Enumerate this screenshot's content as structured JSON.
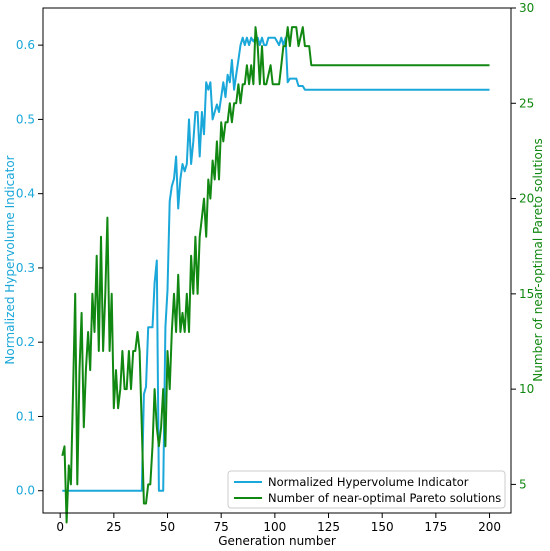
{
  "chart_data": {
    "type": "line",
    "xlabel": "Generation number",
    "ylabel_left": "Normalized Hypervolume Indicator",
    "ylabel_right": "Number of near-optimal Pareto solutions",
    "xlim": [
      -8,
      210
    ],
    "ylim_left": [
      -0.03,
      0.65
    ],
    "ylim_right": [
      3.5,
      30
    ],
    "x_ticks": [
      0,
      25,
      50,
      75,
      100,
      125,
      150,
      175,
      200
    ],
    "x_tick_labels": [
      "0",
      "25",
      "50",
      "75",
      "100",
      "125",
      "150",
      "175",
      "200"
    ],
    "y_left_ticks": [
      0.0,
      0.1,
      0.2,
      0.3,
      0.4,
      0.5,
      0.6
    ],
    "y_left_tick_labels": [
      "0.0",
      "0.1",
      "0.2",
      "0.3",
      "0.4",
      "0.5",
      "0.6"
    ],
    "y_right_ticks": [
      5,
      10,
      15,
      20,
      25,
      30
    ],
    "y_right_tick_labels": [
      "5",
      "10",
      "15",
      "20",
      "25",
      "30"
    ],
    "left_axis_color": "#1aa7d9",
    "right_axis_color": "#118811",
    "legend_position": "lower-right",
    "grid": false,
    "series": [
      {
        "name": "Normalized Hypervolume Indicator",
        "axis": "left",
        "color": "#1aa7d9",
        "points": [
          [
            1,
            0
          ],
          [
            38,
            0
          ],
          [
            39,
            0.13
          ],
          [
            40,
            0.14
          ],
          [
            41,
            0.22
          ],
          [
            43,
            0.22
          ],
          [
            44,
            0.28
          ],
          [
            45,
            0.31
          ],
          [
            46,
            0
          ],
          [
            48,
            0
          ],
          [
            49,
            0.22
          ],
          [
            50,
            0.27
          ],
          [
            51,
            0.39
          ],
          [
            52,
            0.41
          ],
          [
            53,
            0.42
          ],
          [
            54,
            0.45
          ],
          [
            55,
            0.38
          ],
          [
            56,
            0.42
          ],
          [
            57,
            0.44
          ],
          [
            58,
            0.43
          ],
          [
            59,
            0.44
          ],
          [
            60,
            0.5
          ],
          [
            61,
            0.44
          ],
          [
            62,
            0.47
          ],
          [
            63,
            0.51
          ],
          [
            64,
            0.51
          ],
          [
            65,
            0.45
          ],
          [
            66,
            0.51
          ],
          [
            67,
            0.48
          ],
          [
            68,
            0.55
          ],
          [
            69,
            0.54
          ],
          [
            70,
            0.55
          ],
          [
            71,
            0.5
          ],
          [
            72,
            0.51
          ],
          [
            73,
            0.52
          ],
          [
            74,
            0.51
          ],
          [
            75,
            0.53
          ],
          [
            76,
            0.55
          ],
          [
            77,
            0.53
          ],
          [
            78,
            0.56
          ],
          [
            79,
            0.55
          ],
          [
            80,
            0.58
          ],
          [
            81,
            0.54
          ],
          [
            82,
            0.56
          ],
          [
            83,
            0.58
          ],
          [
            84,
            0.6
          ],
          [
            85,
            0.61
          ],
          [
            86,
            0.6
          ],
          [
            87,
            0.61
          ],
          [
            88,
            0.6
          ],
          [
            89,
            0.61
          ],
          [
            90,
            0.605
          ],
          [
            91,
            0.61
          ],
          [
            92,
            0.61
          ],
          [
            93,
            0.6
          ],
          [
            94,
            0.61
          ],
          [
            95,
            0.6
          ],
          [
            96,
            0.6
          ],
          [
            97,
            0.61
          ],
          [
            98,
            0.61
          ],
          [
            100,
            0.61
          ],
          [
            101,
            0.605
          ],
          [
            102,
            0.6
          ],
          [
            103,
            0.61
          ],
          [
            104,
            0.6
          ],
          [
            105,
            0.61
          ],
          [
            106,
            0.55
          ],
          [
            107,
            0.555
          ],
          [
            110,
            0.555
          ],
          [
            111,
            0.545
          ],
          [
            113,
            0.545
          ],
          [
            114,
            0.54
          ],
          [
            120,
            0.54
          ],
          [
            200,
            0.54
          ]
        ]
      },
      {
        "name": "Number of near-optimal Pareto solutions",
        "axis": "right",
        "color": "#118811",
        "points": [
          [
            1,
            6.5
          ],
          [
            2,
            7
          ],
          [
            3,
            3
          ],
          [
            4,
            6
          ],
          [
            5,
            5
          ],
          [
            6,
            10
          ],
          [
            7,
            15
          ],
          [
            8,
            5
          ],
          [
            9,
            11
          ],
          [
            10,
            14
          ],
          [
            11,
            8
          ],
          [
            12,
            11
          ],
          [
            13,
            13
          ],
          [
            14,
            11
          ],
          [
            15,
            15
          ],
          [
            16,
            13
          ],
          [
            17,
            17
          ],
          [
            18,
            12
          ],
          [
            19,
            18
          ],
          [
            20,
            12
          ],
          [
            21,
            15
          ],
          [
            22,
            19
          ],
          [
            23,
            12
          ],
          [
            24,
            15
          ],
          [
            25,
            9
          ],
          [
            26,
            11
          ],
          [
            27,
            9
          ],
          [
            28,
            10
          ],
          [
            29,
            12
          ],
          [
            30,
            10
          ],
          [
            31,
            10
          ],
          [
            32,
            12
          ],
          [
            33,
            10
          ],
          [
            34,
            12
          ],
          [
            35,
            12
          ],
          [
            36,
            13
          ],
          [
            37,
            12
          ],
          [
            38,
            8
          ],
          [
            39,
            4
          ],
          [
            40,
            4
          ],
          [
            41,
            5
          ],
          [
            42,
            5
          ],
          [
            43,
            7
          ],
          [
            44,
            10
          ],
          [
            45,
            8
          ],
          [
            46,
            7
          ],
          [
            47,
            8
          ],
          [
            48,
            10
          ],
          [
            49,
            7
          ],
          [
            50,
            12
          ],
          [
            51,
            10
          ],
          [
            52,
            13
          ],
          [
            53,
            15
          ],
          [
            54,
            13
          ],
          [
            55,
            16
          ],
          [
            56,
            13
          ],
          [
            57,
            14
          ],
          [
            58,
            13
          ],
          [
            59,
            15
          ],
          [
            60,
            13
          ],
          [
            61,
            17
          ],
          [
            62,
            15
          ],
          [
            63,
            18
          ],
          [
            64,
            15
          ],
          [
            65,
            18
          ],
          [
            66,
            19
          ],
          [
            67,
            20
          ],
          [
            68,
            18
          ],
          [
            69,
            21
          ],
          [
            70,
            20
          ],
          [
            71,
            22
          ],
          [
            72,
            21
          ],
          [
            73,
            23
          ],
          [
            74,
            21
          ],
          [
            75,
            24
          ],
          [
            76,
            23
          ],
          [
            77,
            24
          ],
          [
            78,
            24
          ],
          [
            79,
            25
          ],
          [
            80,
            24
          ],
          [
            81,
            25
          ],
          [
            82,
            25
          ],
          [
            83,
            26
          ],
          [
            84,
            25
          ],
          [
            85,
            26
          ],
          [
            86,
            26
          ],
          [
            87,
            27
          ],
          [
            88,
            26
          ],
          [
            89,
            27
          ],
          [
            90,
            26
          ],
          [
            91,
            29
          ],
          [
            92,
            28
          ],
          [
            93,
            26
          ],
          [
            94,
            28
          ],
          [
            95,
            26
          ],
          [
            96,
            26
          ],
          [
            98,
            27
          ],
          [
            99,
            26
          ],
          [
            101,
            26
          ],
          [
            102,
            26
          ],
          [
            103,
            27
          ],
          [
            104,
            28
          ],
          [
            105,
            28
          ],
          [
            106,
            29
          ],
          [
            107,
            28
          ],
          [
            108,
            29
          ],
          [
            110,
            29
          ],
          [
            111,
            28
          ],
          [
            113,
            29
          ],
          [
            114,
            28
          ],
          [
            116,
            28
          ],
          [
            117,
            27
          ],
          [
            200,
            27
          ]
        ]
      }
    ]
  }
}
